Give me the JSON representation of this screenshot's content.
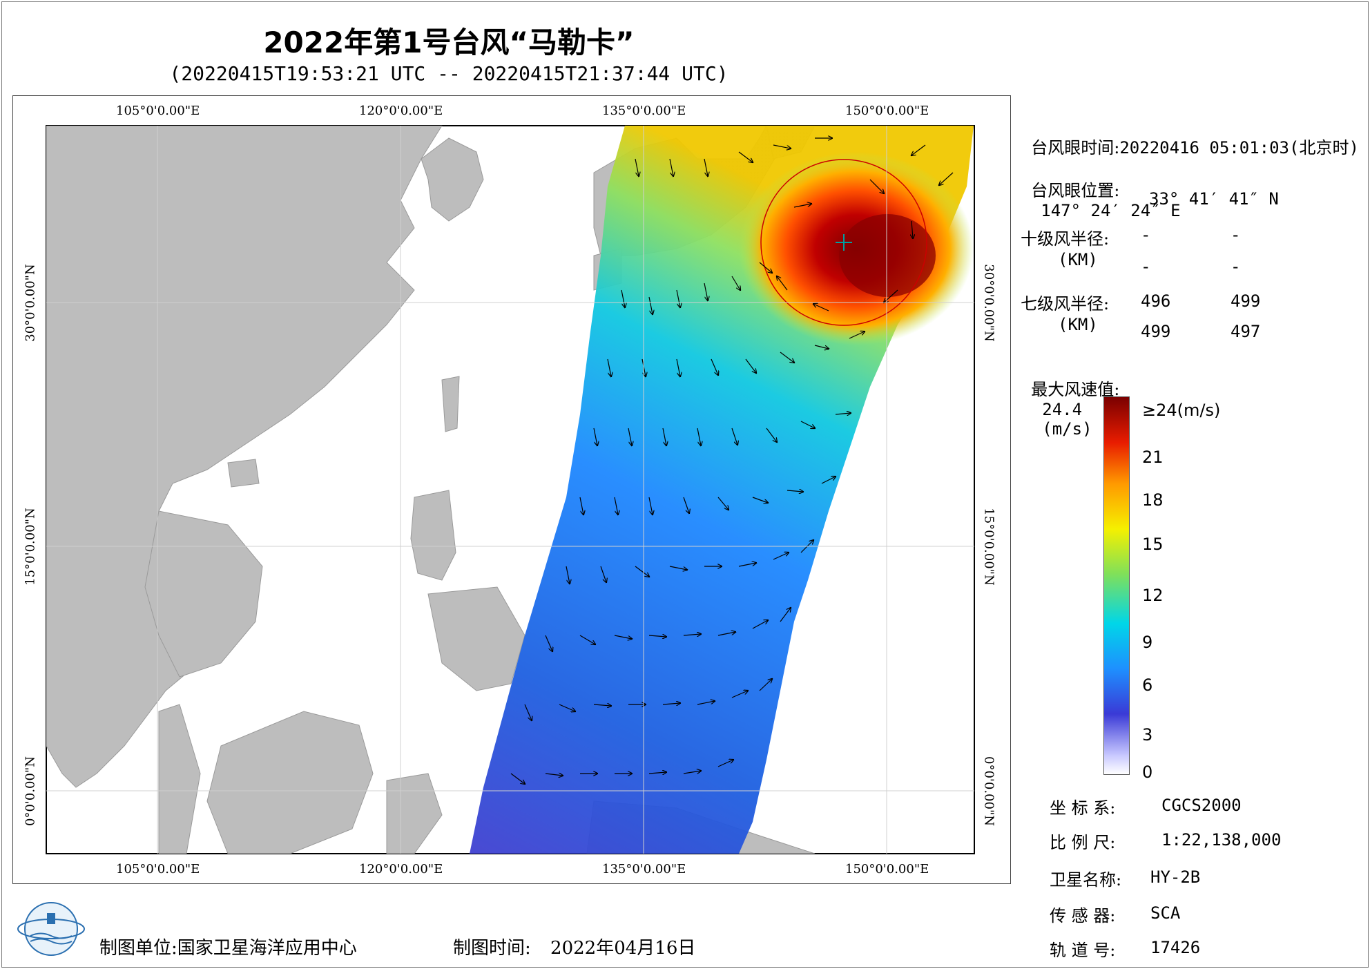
{
  "title": "2022年第1号台风“马勒卡”",
  "subtitle": "(20220415T19:53:21 UTC -- 20220415T21:37:44 UTC)",
  "map": {
    "lon_labels": [
      "105°0'0.00\"E",
      "120°0'0.00\"E",
      "135°0'0.00\"E",
      "150°0'0.00\"E"
    ],
    "lat_labels": [
      "30°0'0.00\"N",
      "15°0'0.00\"N",
      "0°0'0.00\"N"
    ],
    "typhoon_eye_marker": "typhoon-eye-crosshair"
  },
  "info": {
    "eye_time_label": "台风眼时间:",
    "eye_time_value": "20220416 05:01:03(北京时)",
    "eye_pos_label": "台风眼位置:",
    "eye_lon": "147° 24′ 24″ E",
    "eye_lat": "33° 41′ 41″ N",
    "r10_label": "十级风半径:",
    "r10_unit": "(KM)",
    "r10_values": [
      "-",
      "-",
      "-",
      "-"
    ],
    "r7_label": "七级风半径:",
    "r7_unit": "(KM)",
    "r7_values": [
      "496",
      "499",
      "499",
      "497"
    ],
    "max_wind_label": "最大风速值:",
    "max_wind_value": "24.4",
    "max_wind_unit": "(m/s)"
  },
  "legend": {
    "ticks": [
      "≥24(m/s)",
      "21",
      "18",
      "15",
      "12",
      "9",
      "6",
      "3",
      "0"
    ],
    "colors": [
      "#ffffff",
      "#3a3ad6",
      "#1e90ff",
      "#00d6e8",
      "#7fe05a",
      "#f5f000",
      "#ff9a00",
      "#e81c00",
      "#7a0000"
    ]
  },
  "meta": {
    "crs_label": "坐 标 系:",
    "crs_value": "CGCS2000",
    "scale_label": "比 例 尺:",
    "scale_value": "1:22,138,000",
    "sat_label": "卫星名称:",
    "sat_value": "HY-2B",
    "sensor_label": "传 感 器:",
    "sensor_value": "SCA",
    "orbit_label": "轨 道 号:",
    "orbit_value": "17426"
  },
  "footer": {
    "maker_label": "制图单位:",
    "maker_value": "国家卫星海洋应用中心",
    "date_label": "制图时间:",
    "date_value": "2022年04月16日",
    "logo_icon": "nsoas-logo-icon"
  }
}
